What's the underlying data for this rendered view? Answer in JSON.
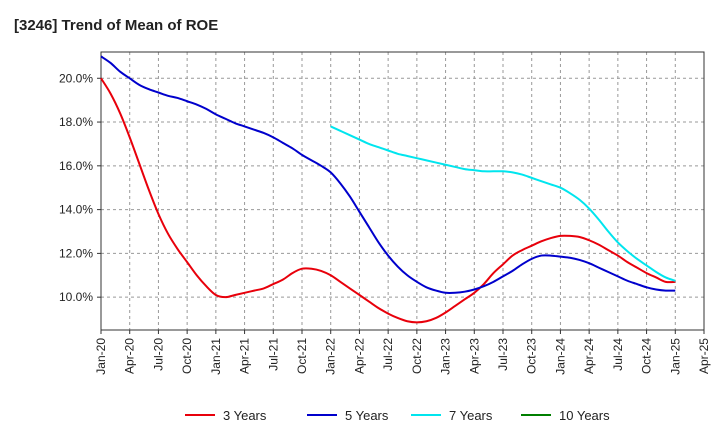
{
  "chart_data": {
    "type": "line",
    "title": "[3246]  Trend of Mean of ROE",
    "xlabel": "",
    "ylabel": "",
    "x_ticks": [
      "Jan-20",
      "Apr-20",
      "Jul-20",
      "Oct-20",
      "Jan-21",
      "Apr-21",
      "Jul-21",
      "Oct-21",
      "Jan-22",
      "Apr-22",
      "Jul-22",
      "Oct-22",
      "Jan-23",
      "Apr-23",
      "Jul-23",
      "Oct-23",
      "Jan-24",
      "Apr-24",
      "Jul-24",
      "Oct-24",
      "Jan-25",
      "Apr-25"
    ],
    "y_ticks": [
      "10.0%",
      "12.0%",
      "14.0%",
      "16.0%",
      "18.0%",
      "20.0%"
    ],
    "y_tick_values": [
      10,
      12,
      14,
      16,
      18,
      20
    ],
    "ylim": [
      8.5,
      21.2
    ],
    "grid": true,
    "legend_position": "bottom",
    "series": [
      {
        "name": "3 Years",
        "color": "#e8000b",
        "points": [
          [
            "Jan-20",
            20.0
          ],
          [
            "Feb-20",
            19.3
          ],
          [
            "Mar-20",
            18.4
          ],
          [
            "Apr-20",
            17.3
          ],
          [
            "May-20",
            16.1
          ],
          [
            "Jun-20",
            14.9
          ],
          [
            "Jul-20",
            13.8
          ],
          [
            "Aug-20",
            12.9
          ],
          [
            "Sep-20",
            12.2
          ],
          [
            "Oct-20",
            11.6
          ],
          [
            "Nov-20",
            11.0
          ],
          [
            "Dec-20",
            10.5
          ],
          [
            "Jan-21",
            10.1
          ],
          [
            "Feb-21",
            10.0
          ],
          [
            "Mar-21",
            10.1
          ],
          [
            "Apr-21",
            10.2
          ],
          [
            "May-21",
            10.3
          ],
          [
            "Jun-21",
            10.4
          ],
          [
            "Jul-21",
            10.6
          ],
          [
            "Aug-21",
            10.8
          ],
          [
            "Sep-21",
            11.1
          ],
          [
            "Oct-21",
            11.3
          ],
          [
            "Nov-21",
            11.3
          ],
          [
            "Dec-21",
            11.2
          ],
          [
            "Jan-22",
            11.0
          ],
          [
            "Feb-22",
            10.7
          ],
          [
            "Mar-22",
            10.4
          ],
          [
            "Apr-22",
            10.1
          ],
          [
            "May-22",
            9.8
          ],
          [
            "Jun-22",
            9.5
          ],
          [
            "Jul-22",
            9.25
          ],
          [
            "Aug-22",
            9.05
          ],
          [
            "Sep-22",
            8.9
          ],
          [
            "Oct-22",
            8.85
          ],
          [
            "Nov-22",
            8.9
          ],
          [
            "Dec-22",
            9.05
          ],
          [
            "Jan-23",
            9.3
          ],
          [
            "Feb-23",
            9.6
          ],
          [
            "Mar-23",
            9.9
          ],
          [
            "Apr-23",
            10.2
          ],
          [
            "May-23",
            10.6
          ],
          [
            "Jun-23",
            11.1
          ],
          [
            "Jul-23",
            11.5
          ],
          [
            "Aug-23",
            11.9
          ],
          [
            "Sep-23",
            12.15
          ],
          [
            "Oct-23",
            12.35
          ],
          [
            "Nov-23",
            12.55
          ],
          [
            "Dec-23",
            12.7
          ],
          [
            "Jan-24",
            12.8
          ],
          [
            "Feb-24",
            12.8
          ],
          [
            "Mar-24",
            12.75
          ],
          [
            "Apr-24",
            12.6
          ],
          [
            "May-24",
            12.4
          ],
          [
            "Jun-24",
            12.15
          ],
          [
            "Jul-24",
            11.9
          ],
          [
            "Aug-24",
            11.6
          ],
          [
            "Sep-24",
            11.35
          ],
          [
            "Oct-24",
            11.1
          ],
          [
            "Nov-24",
            10.9
          ],
          [
            "Dec-24",
            10.7
          ],
          [
            "Jan-25",
            10.7
          ]
        ]
      },
      {
        "name": "5 Years",
        "color": "#0000cc",
        "points": [
          [
            "Jan-20",
            21.0
          ],
          [
            "Feb-20",
            20.7
          ],
          [
            "Mar-20",
            20.3
          ],
          [
            "Apr-20",
            20.0
          ],
          [
            "May-20",
            19.7
          ],
          [
            "Jun-20",
            19.5
          ],
          [
            "Jul-20",
            19.35
          ],
          [
            "Aug-20",
            19.2
          ],
          [
            "Sep-20",
            19.1
          ],
          [
            "Oct-20",
            18.95
          ],
          [
            "Nov-20",
            18.8
          ],
          [
            "Dec-20",
            18.6
          ],
          [
            "Jan-21",
            18.35
          ],
          [
            "Feb-21",
            18.15
          ],
          [
            "Mar-21",
            17.95
          ],
          [
            "Apr-21",
            17.8
          ],
          [
            "May-21",
            17.65
          ],
          [
            "Jun-21",
            17.5
          ],
          [
            "Jul-21",
            17.3
          ],
          [
            "Aug-21",
            17.05
          ],
          [
            "Sep-21",
            16.8
          ],
          [
            "Oct-21",
            16.5
          ],
          [
            "Nov-21",
            16.25
          ],
          [
            "Dec-21",
            16.0
          ],
          [
            "Jan-22",
            15.7
          ],
          [
            "Feb-22",
            15.2
          ],
          [
            "Mar-22",
            14.6
          ],
          [
            "Apr-22",
            13.9
          ],
          [
            "May-22",
            13.2
          ],
          [
            "Jun-22",
            12.5
          ],
          [
            "Jul-22",
            11.9
          ],
          [
            "Aug-22",
            11.4
          ],
          [
            "Sep-22",
            11.0
          ],
          [
            "Oct-22",
            10.7
          ],
          [
            "Nov-22",
            10.45
          ],
          [
            "Dec-22",
            10.3
          ],
          [
            "Jan-23",
            10.2
          ],
          [
            "Feb-23",
            10.2
          ],
          [
            "Mar-23",
            10.25
          ],
          [
            "Apr-23",
            10.35
          ],
          [
            "May-23",
            10.5
          ],
          [
            "Jun-23",
            10.7
          ],
          [
            "Jul-23",
            10.95
          ],
          [
            "Aug-23",
            11.2
          ],
          [
            "Sep-23",
            11.5
          ],
          [
            "Oct-23",
            11.75
          ],
          [
            "Nov-23",
            11.9
          ],
          [
            "Dec-23",
            11.9
          ],
          [
            "Jan-24",
            11.85
          ],
          [
            "Feb-24",
            11.8
          ],
          [
            "Mar-24",
            11.7
          ],
          [
            "Apr-24",
            11.55
          ],
          [
            "May-24",
            11.35
          ],
          [
            "Jun-24",
            11.15
          ],
          [
            "Jul-24",
            10.95
          ],
          [
            "Aug-24",
            10.75
          ],
          [
            "Sep-24",
            10.6
          ],
          [
            "Oct-24",
            10.45
          ],
          [
            "Nov-24",
            10.35
          ],
          [
            "Dec-24",
            10.3
          ],
          [
            "Jan-25",
            10.3
          ]
        ]
      },
      {
        "name": "7 Years",
        "color": "#00e5ee",
        "points": [
          [
            "Jan-22",
            17.8
          ],
          [
            "Feb-22",
            17.6
          ],
          [
            "Mar-22",
            17.4
          ],
          [
            "Apr-22",
            17.2
          ],
          [
            "May-22",
            17.0
          ],
          [
            "Jun-22",
            16.85
          ],
          [
            "Jul-22",
            16.7
          ],
          [
            "Aug-22",
            16.55
          ],
          [
            "Sep-22",
            16.45
          ],
          [
            "Oct-22",
            16.35
          ],
          [
            "Nov-22",
            16.25
          ],
          [
            "Dec-22",
            16.15
          ],
          [
            "Jan-23",
            16.05
          ],
          [
            "Feb-23",
            15.95
          ],
          [
            "Mar-23",
            15.85
          ],
          [
            "Apr-23",
            15.8
          ],
          [
            "May-23",
            15.75
          ],
          [
            "Jun-23",
            15.75
          ],
          [
            "Jul-23",
            15.75
          ],
          [
            "Aug-23",
            15.7
          ],
          [
            "Sep-23",
            15.6
          ],
          [
            "Oct-23",
            15.45
          ],
          [
            "Nov-23",
            15.3
          ],
          [
            "Dec-23",
            15.15
          ],
          [
            "Jan-24",
            15.0
          ],
          [
            "Feb-24",
            14.75
          ],
          [
            "Mar-24",
            14.45
          ],
          [
            "Apr-24",
            14.05
          ],
          [
            "May-24",
            13.55
          ],
          [
            "Jun-24",
            13.0
          ],
          [
            "Jul-24",
            12.5
          ],
          [
            "Aug-24",
            12.1
          ],
          [
            "Sep-24",
            11.75
          ],
          [
            "Oct-24",
            11.45
          ],
          [
            "Nov-24",
            11.15
          ],
          [
            "Dec-24",
            10.9
          ],
          [
            "Jan-25",
            10.75
          ]
        ]
      },
      {
        "name": "10 Years",
        "color": "#007f00",
        "points": []
      }
    ]
  }
}
